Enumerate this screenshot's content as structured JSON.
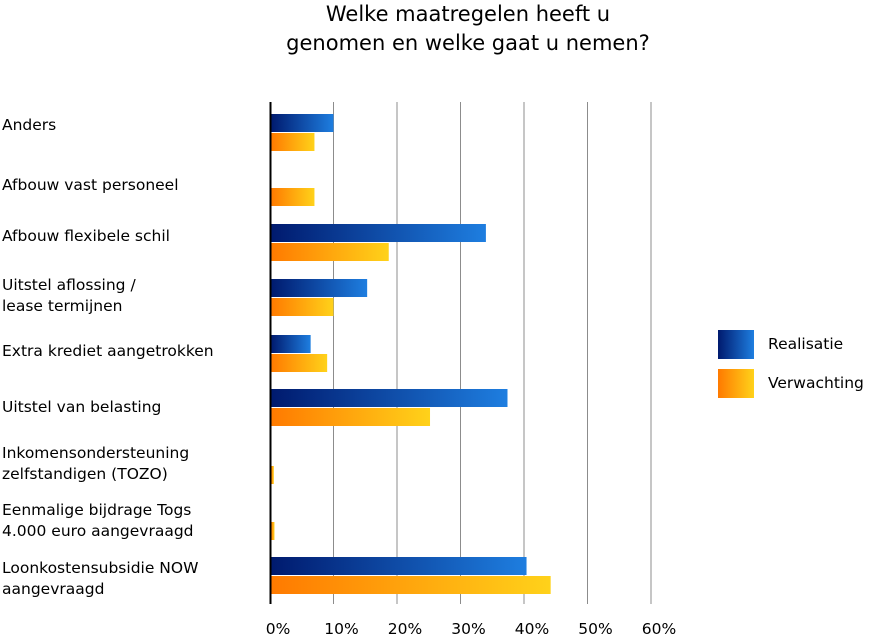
{
  "chart_data": {
    "type": "bar",
    "orientation": "horizontal",
    "title": "Welke maatregelen heeft u\ngenomen en welke gaat u nemen?",
    "title_lines": [
      "Welke maatregelen heeft u",
      "genomen en welke gaat u nemen?"
    ],
    "categories": [
      "Anders",
      "Afbouw vast personeel",
      "Afbouw flexibele schil",
      "Uitstel aflossing /\nlease termijnen",
      "Extra krediet aangetrokken",
      "Uitstel van belasting",
      "Inkomensondersteuning\nzelfstandigen (TOZO)",
      "Eenmalige bijdrage Togs\n4.000 euro aangevraagd",
      "Loonkostensubsidie NOW\naangevraagd"
    ],
    "series": [
      {
        "name": "Realisatie",
        "values": [
          10,
          0,
          34,
          15.3,
          6.4,
          37.4,
          0,
          0,
          40.4
        ]
      },
      {
        "name": "Verwachting",
        "values": [
          7,
          7,
          18.7,
          10,
          9,
          25.2,
          0.6,
          0.7,
          44.2
        ]
      }
    ],
    "xlim": [
      0,
      60
    ],
    "ticks": [
      "0%",
      "10%",
      "20%",
      "30%",
      "40%",
      "50%",
      "60%"
    ],
    "tick_values": [
      0,
      10,
      20,
      30,
      40,
      50,
      60
    ],
    "grid": true,
    "legend_position": "right",
    "colors": {
      "realisatie_dark": "#001a6e",
      "realisatie_light": "#1e7ee0",
      "verwachting_dark": "#ff7a00",
      "verwachting_light": "#ffd21a",
      "grid": "#8c8c8c",
      "axis": "#000000"
    }
  }
}
